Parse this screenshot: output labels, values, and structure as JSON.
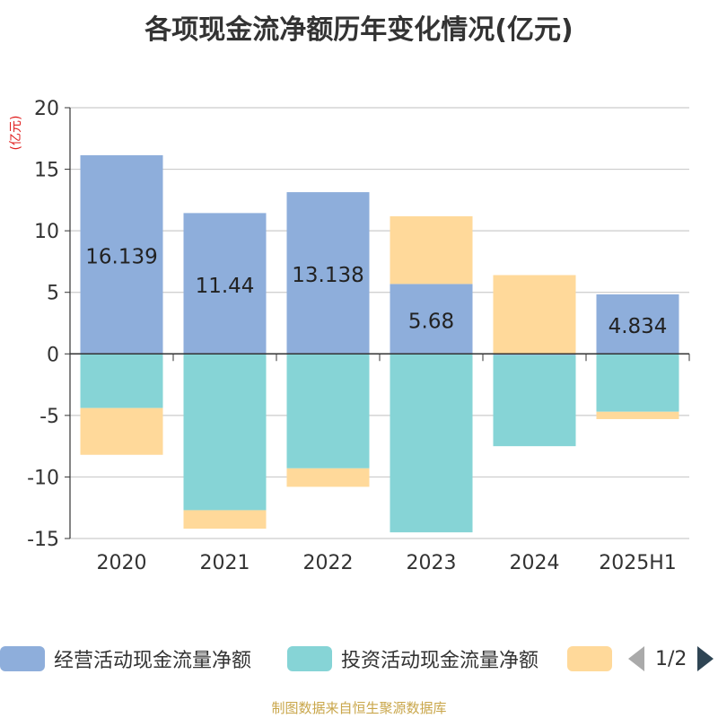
{
  "chart_data": {
    "type": "bar",
    "stacked": true,
    "title": "各项现金流净额历年变化情况(亿元)",
    "ylabel": "(亿元)",
    "categories": [
      "2020",
      "2021",
      "2022",
      "2023",
      "2024",
      "2025H1"
    ],
    "ylim": [
      -15,
      20
    ],
    "yticks": [
      20,
      15,
      10,
      5,
      0,
      -5,
      -10,
      -15
    ],
    "grid": true,
    "legend_position": "bottom",
    "series": [
      {
        "name": "经营活动现金流量净额",
        "color": "#8eaedb",
        "values": [
          16.139,
          11.44,
          13.138,
          5.68,
          -0.1,
          4.834
        ],
        "data_labels": [
          "16.139",
          "11.44",
          "13.138",
          "5.68",
          "",
          "4.834"
        ]
      },
      {
        "name": "投资活动现金流量净额",
        "color": "#86d4d6",
        "values": [
          -4.4,
          -12.7,
          -9.3,
          -14.5,
          -7.4,
          -4.7
        ]
      },
      {
        "name": "",
        "color": "#ffd99a",
        "values": [
          -3.8,
          -1.5,
          -1.5,
          5.5,
          6.4,
          -0.6
        ]
      }
    ]
  },
  "legend": {
    "page": "1/2"
  },
  "footer": {
    "source": "制图数据来自恒生聚源数据库"
  }
}
